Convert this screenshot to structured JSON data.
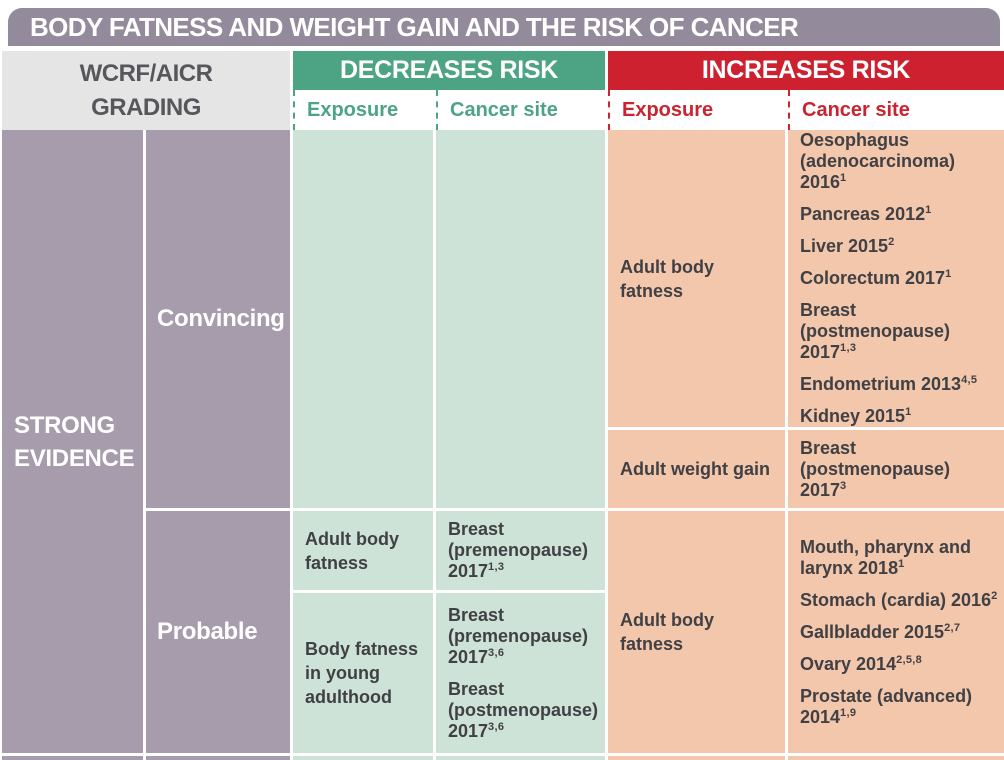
{
  "title": "BODY FATNESS AND WEIGHT GAIN AND THE RISK OF CANCER",
  "grading_header": {
    "line1": "WCRF/AICR",
    "line2": "GRADING"
  },
  "decreases": {
    "header": "DECREASES RISK",
    "exposure_label": "Exposure",
    "cancer_site_label": "Cancer site"
  },
  "increases": {
    "header": "INCREASES RISK",
    "exposure_label": "Exposure",
    "cancer_site_label": "Cancer site"
  },
  "strong_evidence_label": "STRONG EVIDENCE",
  "convincing": {
    "label": "Convincing",
    "increases": [
      {
        "exposure": "Adult body fatness",
        "sites": [
          {
            "text": "Oesophagus (adenocarcinoma) 2016",
            "sup": "1"
          },
          {
            "text": "Pancreas 2012",
            "sup": "1"
          },
          {
            "text": "Liver 2015",
            "sup": "2"
          },
          {
            "text": "Colorectum 2017",
            "sup": "1"
          },
          {
            "text": "Breast (postmenopause) 2017",
            "sup": "1,3"
          },
          {
            "text": "Endometrium 2013",
            "sup": "4,5"
          },
          {
            "text": "Kidney 2015",
            "sup": "1"
          }
        ]
      },
      {
        "exposure": "Adult weight gain",
        "sites": [
          {
            "text": "Breast (postmenopause) 2017",
            "sup": "3"
          }
        ]
      }
    ]
  },
  "probable": {
    "label": "Probable",
    "decreases": [
      {
        "exposure": "Adult body fatness",
        "sites": [
          {
            "text": "Breast (premenopause) 2017",
            "sup": "1,3"
          }
        ]
      },
      {
        "exposure": "Body fatness in young adulthood",
        "sites": [
          {
            "text": "Breast (premenopause) 2017",
            "sup": "3,6"
          },
          {
            "text": "Breast (postmenopause) 2017",
            "sup": "3,6"
          }
        ]
      }
    ],
    "increases": [
      {
        "exposure": "Adult body fatness",
        "sites": [
          {
            "text": "Mouth, pharynx and larynx 2018",
            "sup": "1"
          },
          {
            "text": "Stomach (cardia) 2016",
            "sup": "2"
          },
          {
            "text": "Gallbladder 2015",
            "sup": "2,7"
          },
          {
            "text": "Ovary 2014",
            "sup": "2,5,8"
          },
          {
            "text": "Prostate (advanced) 2014",
            "sup": "1,9"
          }
        ]
      }
    ]
  },
  "colors": {
    "title_bar": "#938B9B",
    "purple_cell": "#A69CAC",
    "grading_bg": "#E6E5E6",
    "decreases_band": "#4DA485",
    "increases_band": "#CE2130",
    "decreases_cell": "#CEE3D8",
    "increases_cell": "#F2C7AC",
    "body_text": "#414044",
    "grading_text": "#56575C",
    "border": "#FFFFFF"
  }
}
